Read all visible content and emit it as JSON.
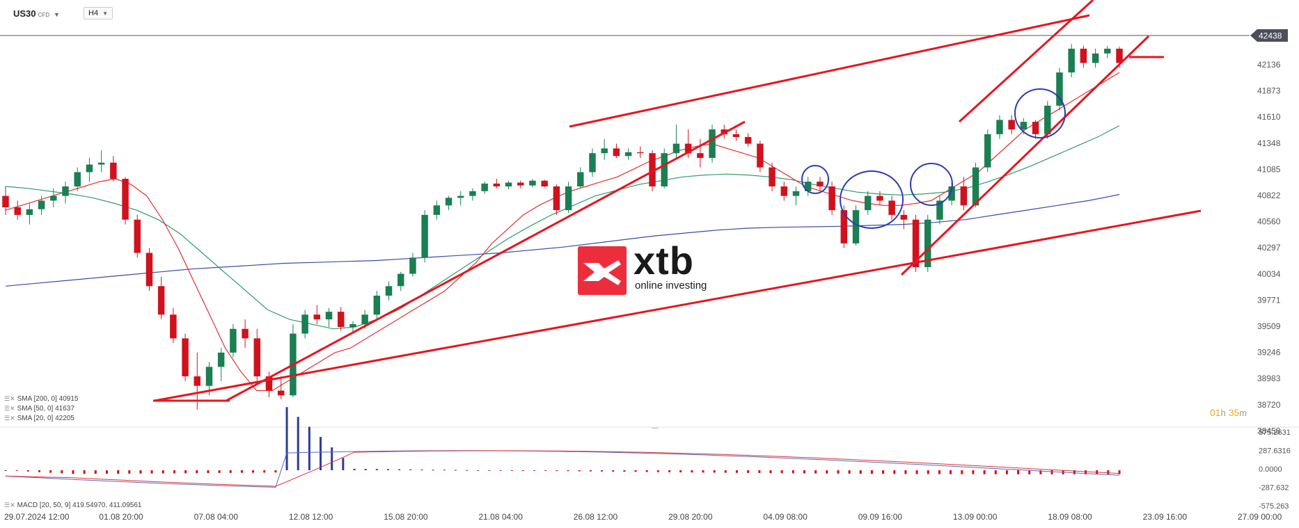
{
  "header": {
    "symbol": "US30",
    "symbol_type": "CFD",
    "timeframe": "H4"
  },
  "current_price": "42438",
  "countdown": {
    "hours": "01",
    "h_unit": "h",
    "minutes": "35",
    "m_unit": "m"
  },
  "indicators": [
    {
      "label": "SMA [200,  0]  40915",
      "color": "#3a4aa8"
    },
    {
      "label": "SMA [50,  0]  41637",
      "color": "#2e9a6a"
    },
    {
      "label": "SMA [20,  0]  42205",
      "color": "#e03030"
    }
  ],
  "macd_label": "MACD [20,  50,  9]  419.54970,  411.09561",
  "logo": {
    "name": "xtb",
    "tagline": "online investing"
  },
  "chart_data": {
    "type": "candlestick",
    "colors": {
      "up": "#1a7f52",
      "down": "#d0121e",
      "trendline": "#e8141f",
      "circle": "#2b3bb5",
      "sma20": "#e03030",
      "sma50": "#2e9a6a",
      "sma200": "#3a4aa8"
    },
    "x_tick_labels": [
      "29.07.2024 12:00",
      "01.08 20:00",
      "07.08 04:00",
      "12.08 12:00",
      "15.08 20:00",
      "21.08 04:00",
      "26.08 12:00",
      "29.08 20:00",
      "04.09 08:00",
      "09.09 16:00",
      "13.09 00:00",
      "18.09 08:00",
      "23.09 16:00",
      "27.09 00:00"
    ],
    "y_tick_labels": [
      "42136",
      "41873",
      "41610",
      "41348",
      "41085",
      "40822",
      "40560",
      "40297",
      "40034",
      "39771",
      "39509",
      "39246",
      "38983",
      "38720",
      "38458"
    ],
    "ylim": [
      38458,
      42560
    ],
    "macd_tick_labels": [
      "575.2631",
      "287.6316",
      "0.0000",
      "-287.632",
      "-575.263"
    ],
    "macd_ylim": [
      -575.263,
      575.2631
    ],
    "candles": [
      [
        40900,
        41000,
        40700,
        40780
      ],
      [
        40780,
        40850,
        40650,
        40700
      ],
      [
        40700,
        40820,
        40600,
        40760
      ],
      [
        40760,
        40900,
        40700,
        40850
      ],
      [
        40850,
        40980,
        40780,
        40900
      ],
      [
        40900,
        41050,
        40820,
        41000
      ],
      [
        41000,
        41200,
        40950,
        41150
      ],
      [
        41150,
        41300,
        41050,
        41230
      ],
      [
        41230,
        41380,
        41150,
        41250
      ],
      [
        41250,
        41320,
        41050,
        41080
      ],
      [
        41080,
        41100,
        40600,
        40650
      ],
      [
        40650,
        40700,
        40250,
        40300
      ],
      [
        40300,
        40350,
        39900,
        39950
      ],
      [
        39950,
        40050,
        39600,
        39650
      ],
      [
        39650,
        39720,
        39350,
        39400
      ],
      [
        39400,
        39450,
        38950,
        39000
      ],
      [
        39000,
        39250,
        38650,
        38900
      ],
      [
        38900,
        39150,
        38800,
        39100
      ],
      [
        39100,
        39300,
        38950,
        39250
      ],
      [
        39250,
        39550,
        39200,
        39500
      ],
      [
        39500,
        39600,
        39300,
        39400
      ],
      [
        39400,
        39500,
        38950,
        39000
      ],
      [
        39000,
        39050,
        38780,
        38850
      ],
      [
        38850,
        39000,
        38760,
        38800
      ],
      [
        38800,
        39550,
        38780,
        39450
      ],
      [
        39450,
        39700,
        39400,
        39650
      ],
      [
        39650,
        39750,
        39550,
        39600
      ],
      [
        39600,
        39720,
        39520,
        39680
      ],
      [
        39680,
        39730,
        39480,
        39520
      ],
      [
        39520,
        39580,
        39450,
        39550
      ],
      [
        39550,
        39700,
        39500,
        39650
      ],
      [
        39650,
        39900,
        39600,
        39850
      ],
      [
        39850,
        40000,
        39800,
        39950
      ],
      [
        39950,
        40100,
        39900,
        40080
      ],
      [
        40080,
        40300,
        40050,
        40250
      ],
      [
        40250,
        40750,
        40200,
        40700
      ],
      [
        40700,
        40850,
        40650,
        40800
      ],
      [
        40800,
        40900,
        40750,
        40880
      ],
      [
        40880,
        40950,
        40800,
        40900
      ],
      [
        40900,
        40980,
        40850,
        40950
      ],
      [
        40950,
        41050,
        40920,
        41030
      ],
      [
        41030,
        41080,
        40980,
        41000
      ],
      [
        41000,
        41060,
        40970,
        41040
      ],
      [
        41040,
        41060,
        40980,
        41010
      ],
      [
        41010,
        41080,
        40990,
        41060
      ],
      [
        41060,
        41070,
        40990,
        41000
      ],
      [
        41000,
        41020,
        40700,
        40750
      ],
      [
        40750,
        41050,
        40720,
        41000
      ],
      [
        41000,
        41200,
        40980,
        41150
      ],
      [
        41150,
        41400,
        41100,
        41350
      ],
      [
        41350,
        41500,
        41280,
        41400
      ],
      [
        41400,
        41450,
        41300,
        41320
      ],
      [
        41320,
        41400,
        41280,
        41360
      ],
      [
        41360,
        41420,
        41300,
        41350
      ],
      [
        41350,
        41380,
        40950,
        41000
      ],
      [
        41000,
        41400,
        40980,
        41350
      ],
      [
        41350,
        41650,
        41300,
        41450
      ],
      [
        41450,
        41600,
        41300,
        41350
      ],
      [
        41350,
        41500,
        41200,
        41300
      ],
      [
        41300,
        41650,
        41250,
        41600
      ],
      [
        41600,
        41650,
        41500,
        41550
      ],
      [
        41550,
        41600,
        41480,
        41520
      ],
      [
        41520,
        41560,
        41420,
        41450
      ],
      [
        41450,
        41480,
        41150,
        41200
      ],
      [
        41200,
        41250,
        40950,
        41000
      ],
      [
        41000,
        41050,
        40850,
        40900
      ],
      [
        40900,
        41000,
        40800,
        40950
      ],
      [
        40950,
        41100,
        40900,
        41050
      ],
      [
        41050,
        41100,
        40950,
        41000
      ],
      [
        41000,
        41050,
        40700,
        40750
      ],
      [
        40750,
        40800,
        40350,
        40400
      ],
      [
        40400,
        40800,
        40380,
        40750
      ],
      [
        40750,
        40950,
        40700,
        40900
      ],
      [
        40900,
        40950,
        40800,
        40850
      ],
      [
        40850,
        40900,
        40650,
        40700
      ],
      [
        40700,
        40750,
        40550,
        40650
      ],
      [
        40650,
        40700,
        40100,
        40150
      ],
      [
        40150,
        40700,
        40100,
        40650
      ],
      [
        40650,
        40900,
        40600,
        40850
      ],
      [
        40850,
        41050,
        40800,
        41000
      ],
      [
        41000,
        41100,
        40750,
        40800
      ],
      [
        40800,
        41250,
        40780,
        41200
      ],
      [
        41200,
        41600,
        41150,
        41550
      ],
      [
        41550,
        41750,
        41500,
        41700
      ],
      [
        41700,
        41750,
        41550,
        41600
      ],
      [
        41600,
        41720,
        41550,
        41680
      ],
      [
        41680,
        41700,
        41500,
        41550
      ],
      [
        41550,
        41900,
        41500,
        41850
      ],
      [
        41850,
        42250,
        41800,
        42200
      ],
      [
        42200,
        42500,
        42150,
        42450
      ],
      [
        42450,
        42480,
        42250,
        42300
      ],
      [
        42300,
        42450,
        42250,
        42400
      ],
      [
        42400,
        42480,
        42350,
        42450
      ],
      [
        42450,
        42470,
        42250,
        42300
      ]
    ],
    "sma20": [
      40750,
      40800,
      40850,
      40900,
      40950,
      41000,
      41050,
      41080,
      41020,
      40900,
      40650,
      40350,
      40000,
      39650,
      39300,
      39050,
      38850,
      38850,
      38950,
      39050,
      39150,
      39250,
      39300,
      39400,
      39500,
      39600,
      39700,
      39800,
      39900,
      40050,
      40200,
      40400,
      40550,
      40700,
      40800,
      40880,
      40950,
      41000,
      41050,
      41100,
      41180,
      41260,
      41320,
      41380,
      41420,
      41450,
      41400,
      41350,
      41300,
      41200,
      41100,
      41000,
      40950,
      40900,
      40850,
      40820,
      40800,
      40800,
      40820,
      40850,
      40950,
      41050,
      41150,
      41300,
      41450,
      41600,
      41700,
      41800,
      41900,
      42000,
      42100,
      42200
    ],
    "sma50": [
      41000,
      40980,
      40950,
      40920,
      40880,
      40820,
      40750,
      40650,
      40500,
      40300,
      40100,
      39900,
      39700,
      39600,
      39550,
      39500,
      39520,
      39600,
      39700,
      39850,
      40000,
      40150,
      40300,
      40450,
      40580,
      40700,
      40800,
      40900,
      40960,
      41020,
      41060,
      41100,
      41120,
      41130,
      41120,
      41100,
      41070,
      41020,
      40980,
      40940,
      40920,
      40910,
      40920,
      40940,
      40980,
      41050,
      41130,
      41220,
      41320,
      41420,
      41520,
      41640
    ],
    "sma200": [
      39950,
      39980,
      40010,
      40040,
      40070,
      40100,
      40130,
      40150,
      40170,
      40190,
      40200,
      40210,
      40220,
      40240,
      40260,
      40280,
      40300,
      40330,
      40360,
      40400,
      40440,
      40480,
      40510,
      40540,
      40560,
      40570,
      40575,
      40580,
      40590,
      40600,
      40620,
      40650,
      40700,
      40750,
      40800,
      40850,
      40915
    ]
  }
}
